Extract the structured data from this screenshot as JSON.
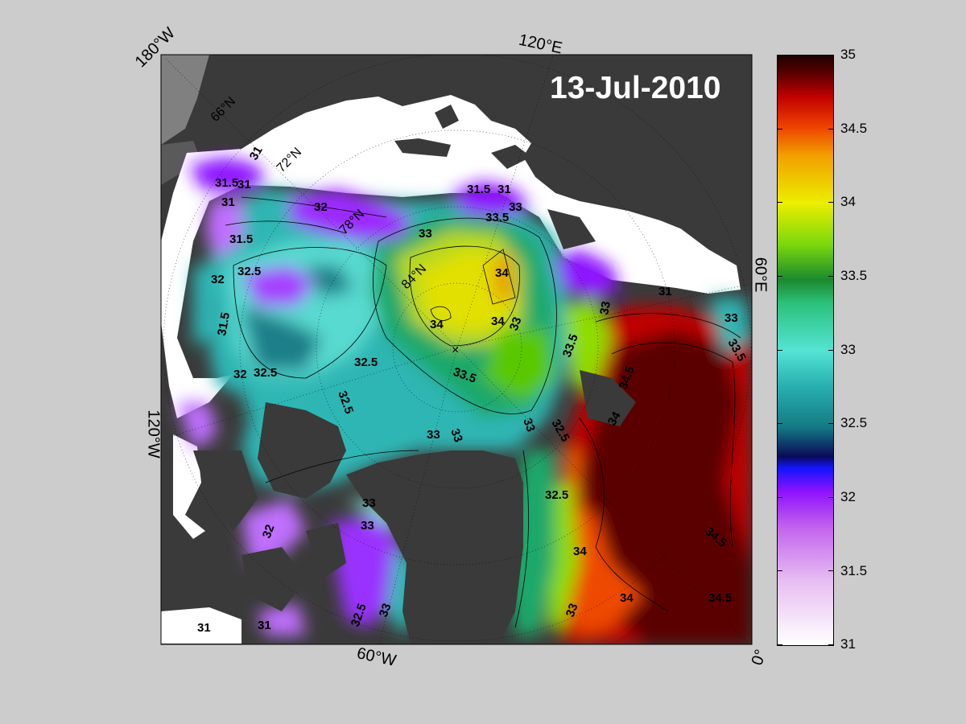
{
  "date_label": "13-Jul-2010",
  "longitude_labels": {
    "top_left": "180°W",
    "top": "120°E",
    "right": "60°E",
    "left": "120°W",
    "bottom": "60°W",
    "bottom_right": "0°"
  },
  "latitude_labels": [
    "66°N",
    "72°N",
    "78°N",
    "84°N"
  ],
  "contour_labels": [
    "31.5",
    "31",
    "31",
    "31",
    "32",
    "31.5",
    "32.5",
    "32",
    "31.5",
    "32.5",
    "32",
    "32.5",
    "32.5",
    "33",
    "31.5",
    "31",
    "33.5",
    "33",
    "34",
    "34",
    "34",
    "34",
    "33",
    "33.5",
    "33.5",
    "32.5",
    "33",
    "34.5",
    "34",
    "33",
    "33",
    "33",
    "32.5",
    "34",
    "34.5",
    "34.5",
    "31",
    "33",
    "33",
    "33.5",
    "33",
    "32.5",
    "33",
    "31",
    "31",
    "32",
    "33"
  ],
  "colorbar": {
    "ticks": [
      "35",
      "34.5",
      "34",
      "33.5",
      "33",
      "32.5",
      "32",
      "31.5",
      "31"
    ],
    "min": 31,
    "max": 35
  },
  "colors": {
    "background": "#cccccc",
    "land": "#3a3a3a",
    "ice": "#ffffff",
    "high_salinity": "#5a0000",
    "mid_salinity": "#e6e600",
    "low_salinity": "#8f12ff"
  }
}
